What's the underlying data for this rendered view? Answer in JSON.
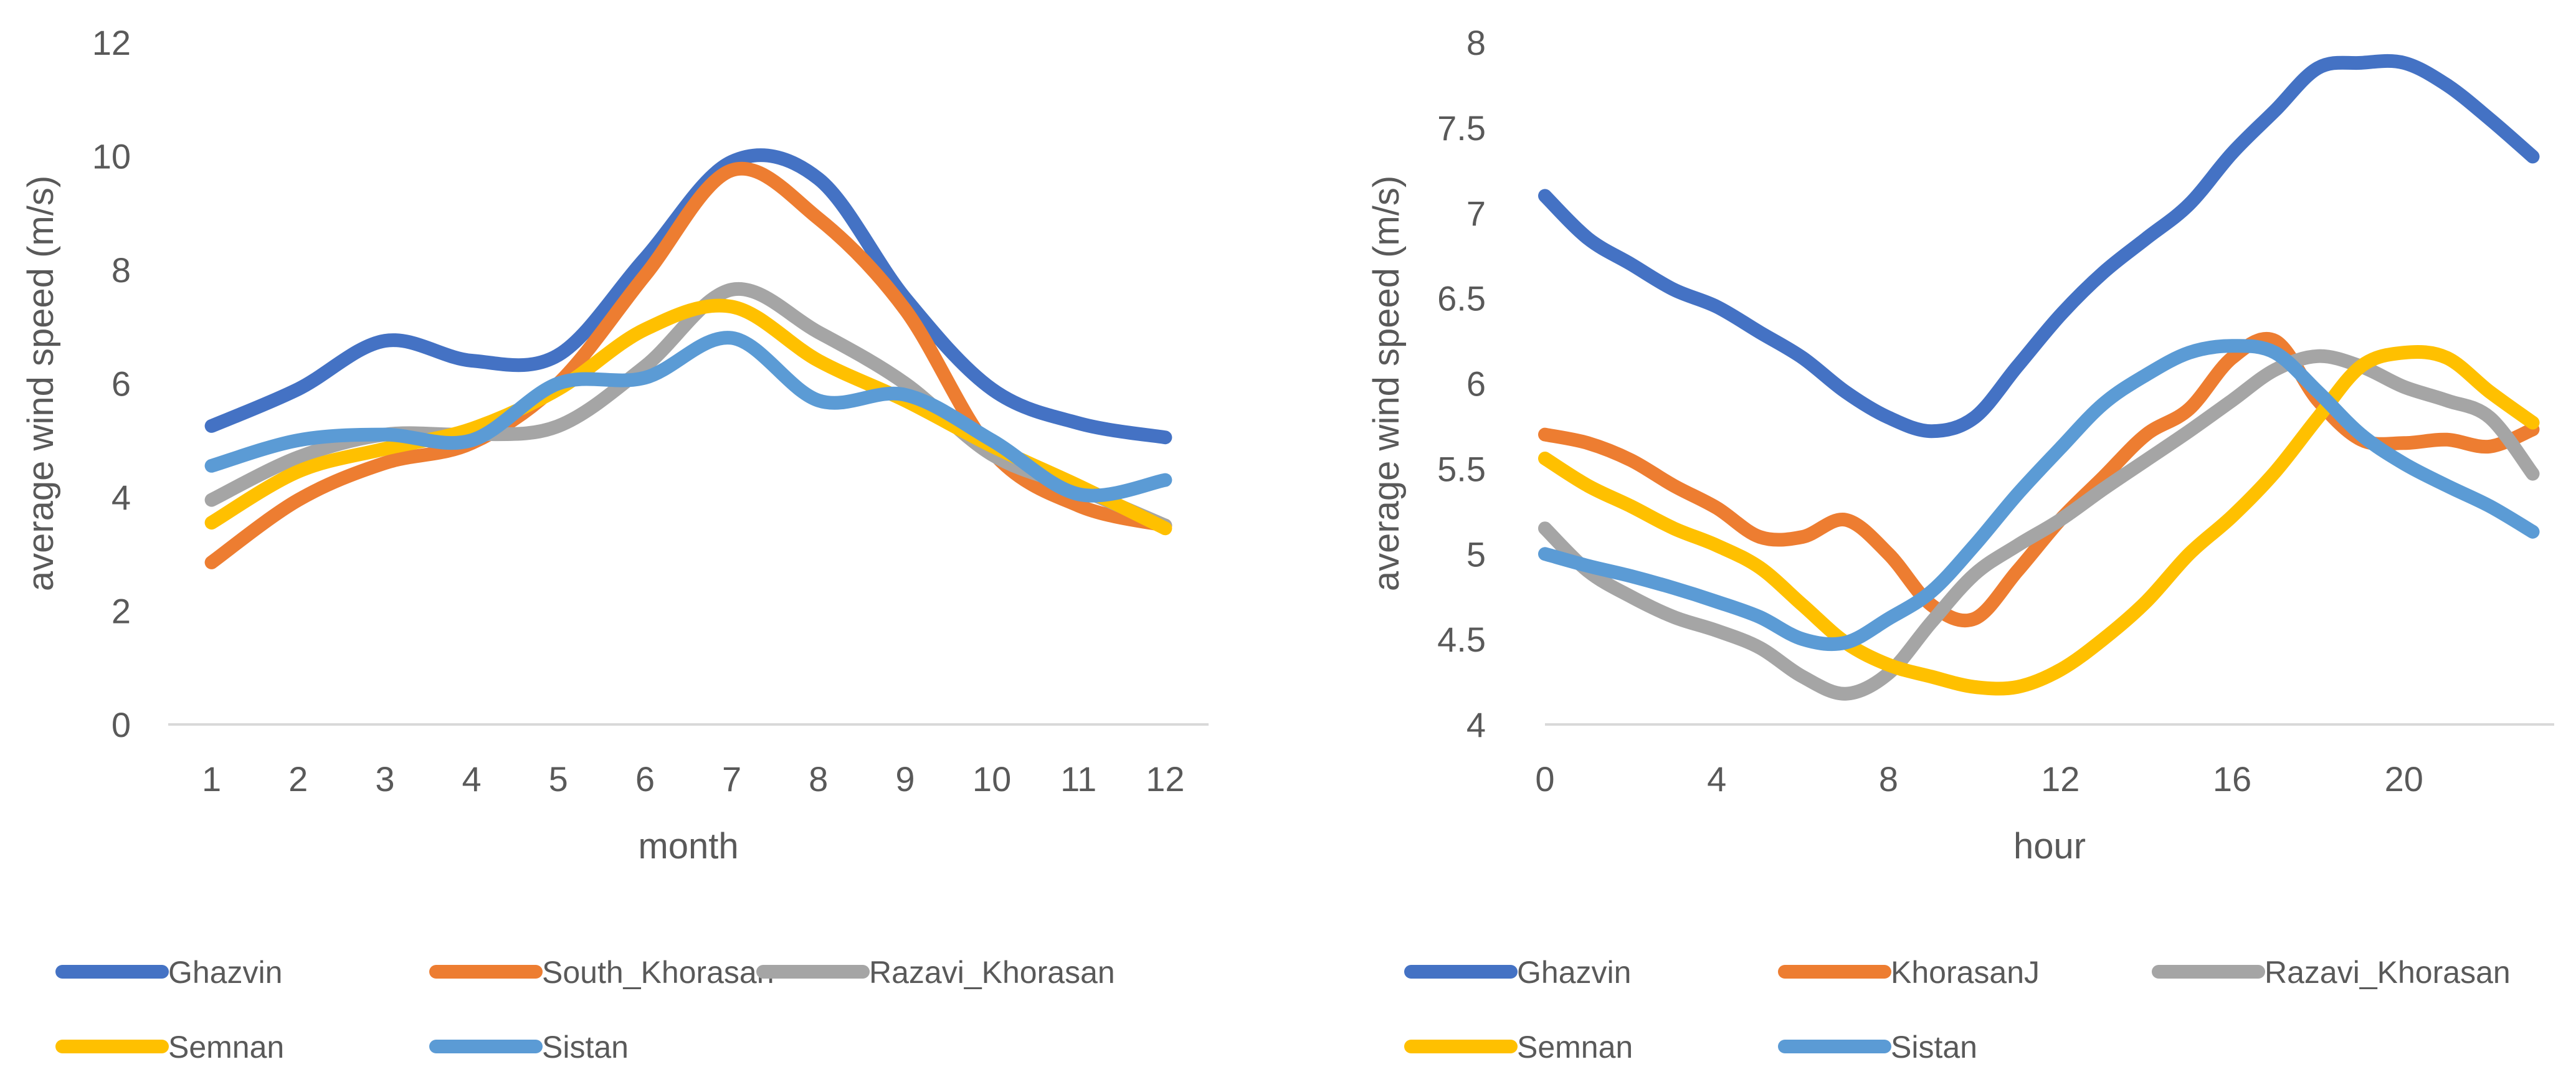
{
  "chart_data": [
    {
      "type": "line",
      "title": "",
      "xlabel": "month",
      "ylabel": "average wind speed (m/s)",
      "x": [
        1,
        2,
        3,
        4,
        5,
        6,
        7,
        8,
        9,
        10,
        11,
        12
      ],
      "xticks": [
        "1",
        "2",
        "3",
        "4",
        "5",
        "6",
        "7",
        "8",
        "9",
        "10",
        "11",
        "12"
      ],
      "ylim": [
        0,
        12
      ],
      "yticks": [
        "0",
        "2",
        "4",
        "6",
        "8",
        "10",
        "12"
      ],
      "grid": false,
      "legend_position": "bottom",
      "series": [
        {
          "name": "Ghazvin",
          "color": "#4472c4",
          "values": [
            5.25,
            5.9,
            6.75,
            6.4,
            6.5,
            8.2,
            9.9,
            9.6,
            7.5,
            5.9,
            5.3,
            5.05
          ]
        },
        {
          "name": "South_Khorasan",
          "color": "#ed7d31",
          "values": [
            2.85,
            3.95,
            4.6,
            4.95,
            6.0,
            7.9,
            9.75,
            8.9,
            7.3,
            4.8,
            3.85,
            3.5
          ]
        },
        {
          "name": "Razavi_Khorasan",
          "color": "#a5a5a5",
          "values": [
            3.95,
            4.7,
            5.1,
            5.1,
            5.25,
            6.3,
            7.65,
            6.9,
            6.0,
            4.75,
            4.15,
            3.5
          ]
        },
        {
          "name": "Semnan",
          "color": "#ffc000",
          "values": [
            3.55,
            4.45,
            4.85,
            5.2,
            5.9,
            6.95,
            7.35,
            6.4,
            5.7,
            4.9,
            4.2,
            3.45
          ]
        },
        {
          "name": "Sistan",
          "color": "#5b9bd5",
          "values": [
            4.55,
            5.0,
            5.1,
            5.0,
            6.0,
            6.1,
            6.8,
            5.7,
            5.8,
            5.0,
            4.05,
            4.3
          ]
        }
      ]
    },
    {
      "type": "line",
      "title": "",
      "xlabel": "hour",
      "ylabel": "average wind speed (m/s)",
      "x": [
        0,
        1,
        2,
        3,
        4,
        5,
        6,
        7,
        8,
        9,
        10,
        11,
        12,
        13,
        14,
        15,
        16,
        17,
        18,
        19,
        20,
        21,
        22,
        23
      ],
      "xlim": [
        0,
        23.5
      ],
      "xticks": [
        "0",
        "4",
        "8",
        "12",
        "16",
        "20"
      ],
      "xtick_values": [
        0,
        4,
        8,
        12,
        16,
        20
      ],
      "ylim": [
        4,
        8
      ],
      "yticks": [
        "4",
        "4.5",
        "5",
        "5.5",
        "6",
        "6.5",
        "7",
        "7.5",
        "8"
      ],
      "grid": false,
      "legend_position": "bottom",
      "series": [
        {
          "name": "Ghazvin",
          "color": "#4472c4",
          "values": [
            7.1,
            6.85,
            6.7,
            6.55,
            6.45,
            6.3,
            6.15,
            5.95,
            5.8,
            5.72,
            5.8,
            6.1,
            6.4,
            6.65,
            6.85,
            7.05,
            7.35,
            7.6,
            7.85,
            7.88,
            7.88,
            7.75,
            7.55,
            7.33
          ]
        },
        {
          "name": "KhorasanJ",
          "color": "#ed7d31",
          "values": [
            5.7,
            5.65,
            5.55,
            5.4,
            5.27,
            5.1,
            5.1,
            5.2,
            5.0,
            4.7,
            4.62,
            4.9,
            5.2,
            5.45,
            5.7,
            5.85,
            6.15,
            6.25,
            5.9,
            5.67,
            5.65,
            5.67,
            5.63,
            5.73
          ]
        },
        {
          "name": "Razavi_Khorasan",
          "color": "#a5a5a5",
          "values": [
            5.15,
            4.9,
            4.75,
            4.63,
            4.55,
            4.45,
            4.28,
            4.18,
            4.3,
            4.6,
            4.88,
            5.05,
            5.2,
            5.38,
            5.55,
            5.72,
            5.9,
            6.08,
            6.16,
            6.1,
            5.98,
            5.9,
            5.8,
            5.47
          ]
        },
        {
          "name": "Semnan",
          "color": "#ffc000",
          "values": [
            5.56,
            5.4,
            5.28,
            5.15,
            5.05,
            4.92,
            4.7,
            4.48,
            4.35,
            4.28,
            4.22,
            4.22,
            4.32,
            4.5,
            4.72,
            5.0,
            5.22,
            5.48,
            5.8,
            6.1,
            6.18,
            6.15,
            5.95,
            5.77
          ]
        },
        {
          "name": "Sistan",
          "color": "#5b9bd5",
          "values": [
            5.0,
            4.93,
            4.87,
            4.8,
            4.72,
            4.63,
            4.5,
            4.48,
            4.62,
            4.78,
            5.05,
            5.35,
            5.62,
            5.88,
            6.05,
            6.18,
            6.22,
            6.18,
            5.95,
            5.7,
            5.53,
            5.4,
            5.28,
            5.13
          ]
        }
      ]
    }
  ]
}
